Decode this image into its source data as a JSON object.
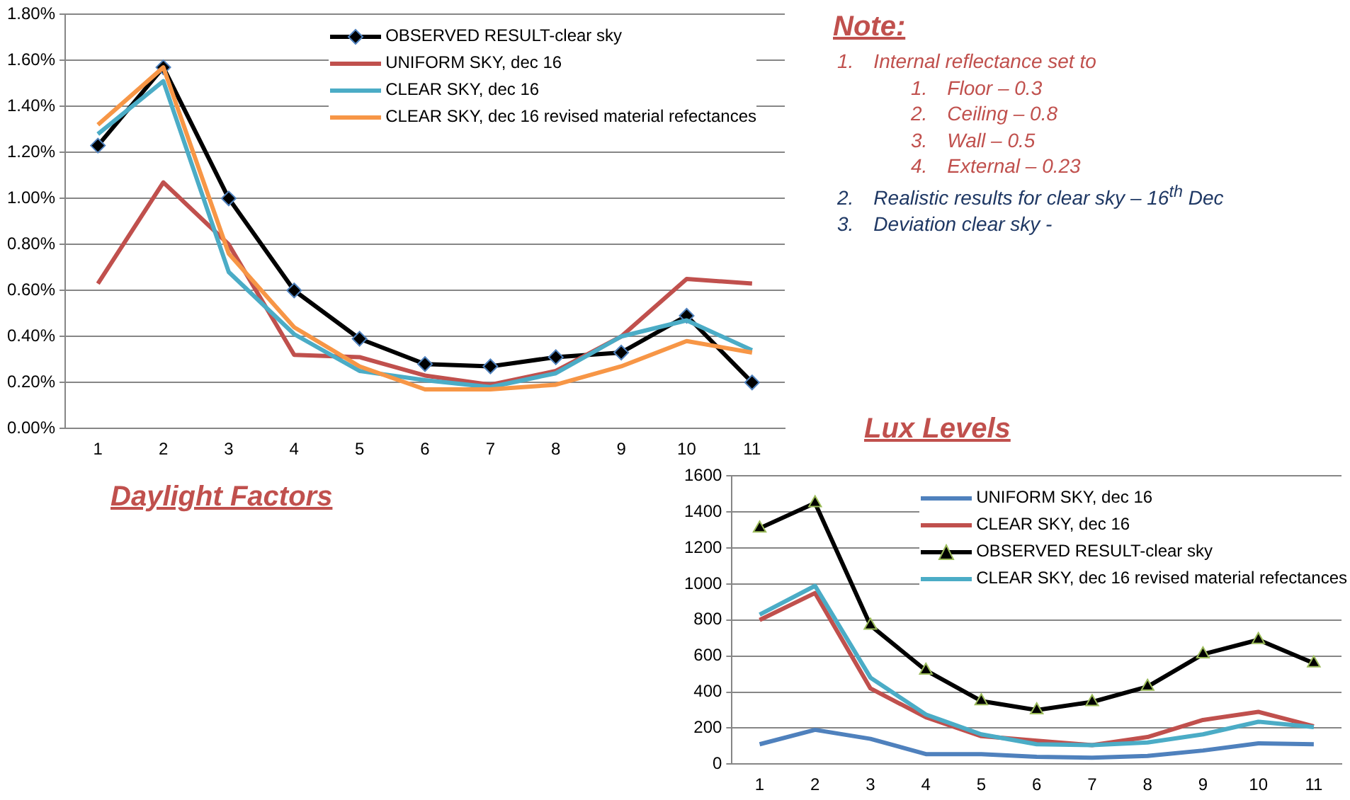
{
  "chart_data": [
    {
      "type": "line",
      "title": "Daylight Factors",
      "categories": [
        "1",
        "2",
        "3",
        "4",
        "5",
        "6",
        "7",
        "8",
        "9",
        "10",
        "11"
      ],
      "series": [
        {
          "name": "OBSERVED RESULT-clear sky",
          "color": "#000000",
          "marker": "diamond",
          "values": [
            1.23,
            1.57,
            1.0,
            0.6,
            0.39,
            0.28,
            0.27,
            0.31,
            0.33,
            0.49,
            0.2
          ]
        },
        {
          "name": "UNIFORM SKY, dec 16",
          "color": "#c0504d",
          "marker": "none",
          "values": [
            0.63,
            1.07,
            0.8,
            0.32,
            0.31,
            0.23,
            0.19,
            0.25,
            0.4,
            0.65,
            0.63
          ]
        },
        {
          "name": "CLEAR SKY, dec 16",
          "color": "#4bacc6",
          "marker": "none",
          "values": [
            1.28,
            1.51,
            0.68,
            0.41,
            0.25,
            0.21,
            0.18,
            0.24,
            0.4,
            0.47,
            0.34
          ]
        },
        {
          "name": "CLEAR SKY, dec 16 revised material refectances",
          "color": "#f79646",
          "marker": "none",
          "values": [
            1.32,
            1.57,
            0.76,
            0.44,
            0.27,
            0.17,
            0.17,
            0.19,
            0.27,
            0.38,
            0.33
          ]
        }
      ],
      "ylim": [
        0,
        1.8
      ],
      "yticks": [
        {
          "value": 0,
          "label": "0.00%"
        },
        {
          "value": 0.2,
          "label": "0.20%"
        },
        {
          "value": 0.4,
          "label": "0.40%"
        },
        {
          "value": 0.6,
          "label": "0.60%"
        },
        {
          "value": 0.8,
          "label": "0.80%"
        },
        {
          "value": 1.0,
          "label": "1.00%"
        },
        {
          "value": 1.2,
          "label": "1.20%"
        },
        {
          "value": 1.4,
          "label": "1.40%"
        },
        {
          "value": 1.6,
          "label": "1.60%"
        },
        {
          "value": 1.8,
          "label": "1.80%"
        }
      ],
      "grid": "y",
      "legend": "top right",
      "line_style": "solid"
    },
    {
      "type": "line",
      "title": "Lux Levels",
      "categories": [
        "1",
        "2",
        "3",
        "4",
        "5",
        "6",
        "7",
        "8",
        "9",
        "10",
        "11"
      ],
      "series": [
        {
          "name": "UNIFORM SKY, dec 16",
          "color": "#4f81bd",
          "marker": "none",
          "values": [
            110,
            190,
            140,
            55,
            55,
            40,
            35,
            45,
            75,
            115,
            110
          ]
        },
        {
          "name": "CLEAR SKY, dec 16",
          "color": "#c0504d",
          "marker": "none",
          "values": [
            800,
            950,
            420,
            260,
            155,
            130,
            105,
            150,
            245,
            290,
            210
          ]
        },
        {
          "name": "OBSERVED RESULT-clear sky",
          "color": "#000000",
          "marker": "triangle",
          "values": [
            1310,
            1450,
            770,
            520,
            350,
            300,
            345,
            430,
            610,
            690,
            560
          ]
        },
        {
          "name": "CLEAR SKY, dec 16 revised material refectances",
          "color": "#4bacc6",
          "marker": "none",
          "values": [
            830,
            990,
            480,
            275,
            165,
            110,
            105,
            120,
            165,
            235,
            205
          ]
        }
      ],
      "ylim": [
        0,
        1600
      ],
      "yticks": [
        0,
        200,
        400,
        600,
        800,
        1000,
        1200,
        1400,
        1600
      ],
      "grid": "y",
      "legend": "top right",
      "line_style": "solid"
    },
    {
      "type": "other",
      "title": "Note:",
      "annotations": [
        "1.\tInternal reflectance set to",
        "1.\tFloor – 0.3",
        "2.\tCeiling – 0.8",
        "3.\tWall – 0.5",
        "4.\tExternal – 0.23",
        "2.\tRealistic results for clear sky – 16$^{th}$ Dec",
        "3.\tDeviation clear sky -"
      ]
    }
  ]
}
